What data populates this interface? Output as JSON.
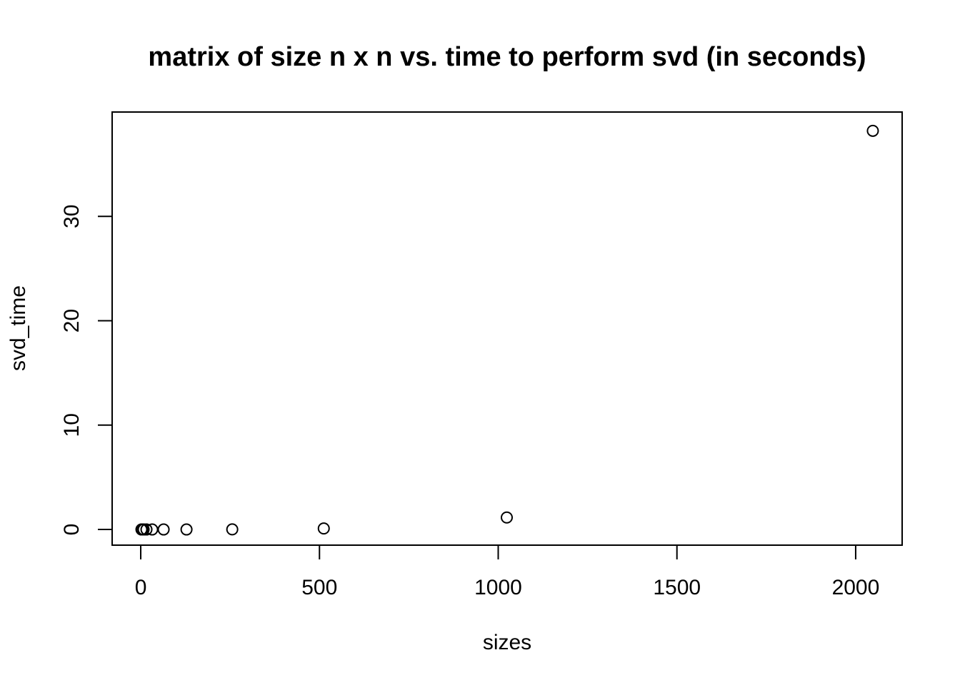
{
  "chart_data": {
    "type": "scatter",
    "title": "matrix of size n x n vs. time to perform svd (in seconds)",
    "xlabel": "sizes",
    "ylabel": "svd_time",
    "xlim": [
      -80,
      2130
    ],
    "ylim": [
      -1.5,
      40
    ],
    "xticks": [
      0,
      500,
      1000,
      1500,
      2000
    ],
    "yticks": [
      0,
      10,
      20,
      30
    ],
    "grid": false,
    "legend": "none",
    "point_style": "open-circle",
    "color": "#000000",
    "points": [
      {
        "x": 2,
        "y": 0
      },
      {
        "x": 4,
        "y": 0
      },
      {
        "x": 8,
        "y": 0
      },
      {
        "x": 16,
        "y": 0
      },
      {
        "x": 32,
        "y": 0
      },
      {
        "x": 64,
        "y": 0
      },
      {
        "x": 128,
        "y": 0
      },
      {
        "x": 256,
        "y": 0.01
      },
      {
        "x": 512,
        "y": 0.1
      },
      {
        "x": 1024,
        "y": 1.15
      },
      {
        "x": 2048,
        "y": 38.2
      }
    ]
  }
}
